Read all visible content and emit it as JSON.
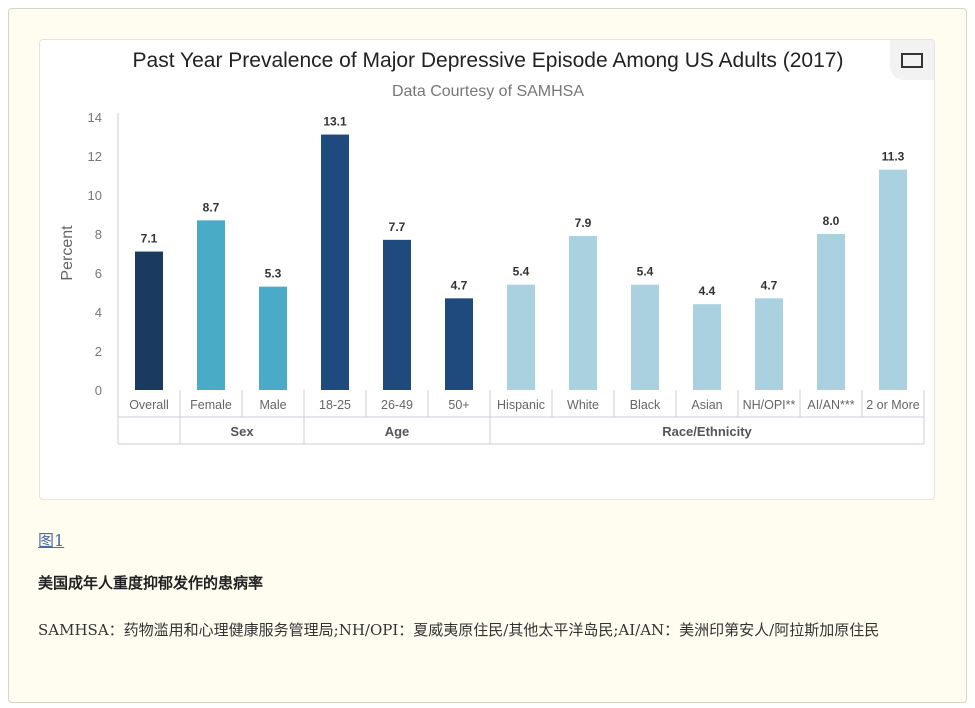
{
  "chart_data": {
    "type": "bar",
    "title": "Past Year Prevalence of Major Depressive Episode Among US Adults (2017)",
    "subtitle": "Data Courtesy of SAMHSA",
    "ylabel": "Percent",
    "ylim": [
      0,
      14
    ],
    "yticks": [
      0,
      2,
      4,
      6,
      8,
      10,
      12,
      14
    ],
    "grid": false,
    "categories": [
      "Overall",
      "Female",
      "Male",
      "18-25",
      "26-49",
      "50+",
      "Hispanic",
      "White",
      "Black",
      "Asian",
      "NH/OPI**",
      "AI/AN***",
      "2 or More"
    ],
    "values": [
      7.1,
      8.7,
      5.3,
      13.1,
      7.7,
      4.7,
      5.4,
      7.9,
      5.4,
      4.4,
      4.7,
      8.0,
      11.3
    ],
    "value_labels": [
      "7.1",
      "8.7",
      "5.3",
      "13.1",
      "7.7",
      "4.7",
      "5.4",
      "7.9",
      "5.4",
      "4.4",
      "4.7",
      "8.0",
      "11.3"
    ],
    "groups": [
      {
        "label": "",
        "count": 1
      },
      {
        "label": "Sex",
        "count": 2
      },
      {
        "label": "Age",
        "count": 3
      },
      {
        "label": "Race/Ethnicity",
        "count": 7
      }
    ],
    "colors": [
      "#1b3a5f",
      "#4aabc8",
      "#4aabc8",
      "#1f4a7e",
      "#1f4a7e",
      "#1f4a7e",
      "#a9d1df",
      "#a9d1df",
      "#a9d1df",
      "#a9d1df",
      "#a9d1df",
      "#a9d1df",
      "#a9d1df"
    ]
  },
  "figure_link": "图1",
  "caption": "美国成年人重度抑郁发作的患病率",
  "note": "SAMHSA：药物滥用和心理健康服务管理局;NH/OPI：夏威夷原住民/其他太平洋岛民;AI/AN：美洲印第安人/阿拉斯加原住民"
}
